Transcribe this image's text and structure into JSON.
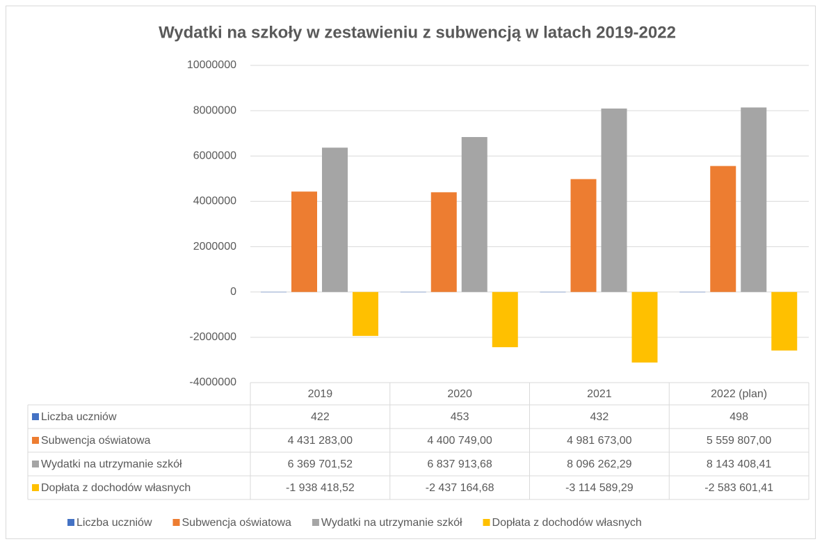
{
  "chart_data": {
    "type": "bar",
    "title": "Wydatki na szkoły w zestawieniu z subwencją w latach 2019-2022",
    "categories": [
      "2019",
      "2020",
      "2021",
      "2022 (plan)"
    ],
    "series": [
      {
        "name": "Liczba uczniów",
        "color": "#4472c4",
        "values": [
          422,
          453,
          432,
          498
        ]
      },
      {
        "name": "Subwencja oświatowa",
        "color": "#ed7d31",
        "values": [
          4431283.0,
          4400749.0,
          4981673.0,
          5559807.0
        ],
        "value_labels": [
          "4 431 283,00",
          "4 400 749,00",
          "4 981 673,00",
          "5 559 807,00"
        ]
      },
      {
        "name": "Wydatki na utrzymanie szkół",
        "color": "#a5a5a5",
        "values": [
          6369701.52,
          6837913.68,
          8096262.29,
          8143408.41
        ],
        "value_labels": [
          "6 369 701,52",
          "6 837 913,68",
          "8 096 262,29",
          "8 143 408,41"
        ]
      },
      {
        "name": "Dopłata z dochodów własnych",
        "color": "#ffc000",
        "values": [
          -1938418.52,
          -2437164.68,
          -3114589.29,
          -2583601.41
        ],
        "value_labels": [
          "-1 938 418,52",
          "-2 437 164,68",
          "-3 114 589,29",
          "-2 583 601,41"
        ]
      }
    ],
    "ylim": [
      -4000000,
      10000000
    ],
    "yticks": [
      -4000000,
      -2000000,
      0,
      2000000,
      4000000,
      6000000,
      8000000,
      10000000
    ],
    "grid": true
  }
}
